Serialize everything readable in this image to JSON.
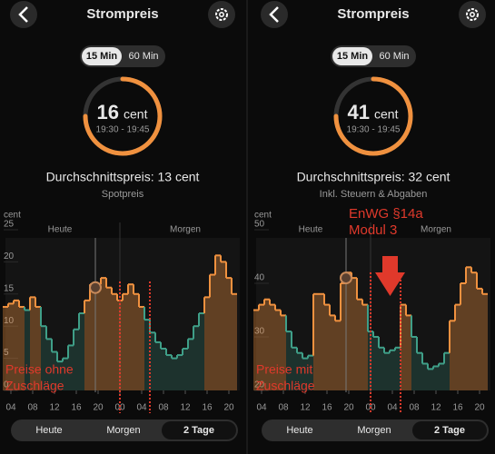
{
  "panels": [
    {
      "title": "Strompreis",
      "toggle": [
        "15 Min",
        "60 Min"
      ],
      "price": 16,
      "unit": "cent",
      "time": "19:30 - 19:45",
      "average": "Durchschnittspreis: 13 cent",
      "subtitle": "Spotpreis",
      "chart": {
        "type": "step",
        "y_label": "cent",
        "days": [
          "Heute",
          "Morgen"
        ],
        "x": [
          3,
          4,
          5,
          6,
          7,
          8,
          9,
          10,
          11,
          12,
          13,
          14,
          15,
          16,
          17,
          18,
          19,
          20,
          21,
          22,
          23,
          24,
          25,
          26,
          27,
          28,
          29,
          30,
          31,
          32,
          33,
          34,
          35,
          36,
          37,
          38,
          39,
          40,
          41,
          42,
          43,
          44,
          45
        ],
        "values": [
          13,
          13.5,
          14,
          13,
          12.5,
          14.5,
          13,
          10,
          8,
          6,
          4.5,
          5,
          7,
          9.5,
          12,
          14,
          16.5,
          16.5,
          17.5,
          16,
          15,
          14,
          15,
          16.5,
          15,
          13,
          11,
          9,
          7.5,
          6.5,
          5.5,
          5,
          5.5,
          6.5,
          8,
          10,
          12,
          14.5,
          18,
          21,
          20,
          17.5,
          15
        ],
        "xlim": [
          3,
          46
        ],
        "ylim": [
          0,
          25
        ],
        "yticks": [
          0,
          5,
          10,
          15,
          20,
          25
        ],
        "xticks": [
          {
            "value": 4,
            "label": "04"
          },
          {
            "value": 8,
            "label": "08"
          },
          12,
          16,
          20,
          {
            "value": 24,
            "label": "00"
          },
          {
            "value": 28,
            "label": "04"
          },
          {
            "value": 32,
            "label": "08"
          },
          {
            "value": 36,
            "label": "12"
          },
          {
            "value": 40,
            "label": "16"
          },
          {
            "value": 44,
            "label": "20"
          }
        ],
        "colors": {
          "above": "#f0913f",
          "below": "#3f9f88"
        }
      },
      "annotations": [
        {
          "lines": [
            "Preise ohne",
            "Zuschläge"
          ]
        }
      ],
      "tabs": [
        "Heute",
        "Morgen",
        "2 Tage"
      ]
    },
    {
      "title": "Strompreis",
      "toggle": [
        "15 Min",
        "60 Min"
      ],
      "price": 41,
      "unit": "cent",
      "time": "19:30 - 19:45",
      "average": "Durchschnittspreis: 32 cent",
      "subtitle": "Inkl. Steuern & Abgaben",
      "chart": {
        "type": "step",
        "y_label": "cent",
        "days": [
          "Heute",
          "Morgen"
        ],
        "x": [
          3,
          4,
          5,
          6,
          7,
          8,
          9,
          10,
          11,
          12,
          13,
          14,
          15,
          16,
          17,
          18,
          19,
          20,
          21,
          22,
          23,
          24,
          25,
          26,
          27,
          28,
          29,
          30,
          31,
          32,
          33,
          34,
          35,
          36,
          37,
          38,
          39,
          40,
          41,
          42,
          43,
          44,
          45
        ],
        "values": [
          35,
          36,
          37,
          36,
          35,
          34,
          31,
          28,
          27,
          26,
          26.5,
          38,
          38,
          36,
          34,
          33,
          40,
          42,
          41,
          37,
          36,
          31,
          30,
          28,
          27,
          27.5,
          28,
          36,
          34,
          30,
          27,
          25,
          24,
          24.5,
          25,
          27,
          33,
          36,
          40,
          43,
          42,
          39,
          38
        ],
        "xlim": [
          3,
          46
        ],
        "ylim": [
          20,
          50
        ],
        "yticks": [
          20,
          30,
          40,
          50
        ],
        "xticks": [
          {
            "value": 4,
            "label": "04"
          },
          {
            "value": 8,
            "label": "08"
          },
          12,
          16,
          20,
          {
            "value": 24,
            "label": "00"
          },
          {
            "value": 28,
            "label": "04"
          },
          {
            "value": 32,
            "label": "08"
          },
          {
            "value": 36,
            "label": "12"
          },
          {
            "value": 40,
            "label": "16"
          },
          {
            "value": 44,
            "label": "20"
          }
        ],
        "colors": {
          "above": "#f0913f",
          "below": "#3f9f88"
        }
      },
      "annotations": [
        {
          "lines": [
            "Preise mit",
            "Zuschläge"
          ]
        },
        {
          "lines": [
            "EnWG §14a",
            "Modul 3"
          ]
        }
      ],
      "tabs": [
        "Heute",
        "Morgen",
        "2 Tage"
      ]
    }
  ]
}
